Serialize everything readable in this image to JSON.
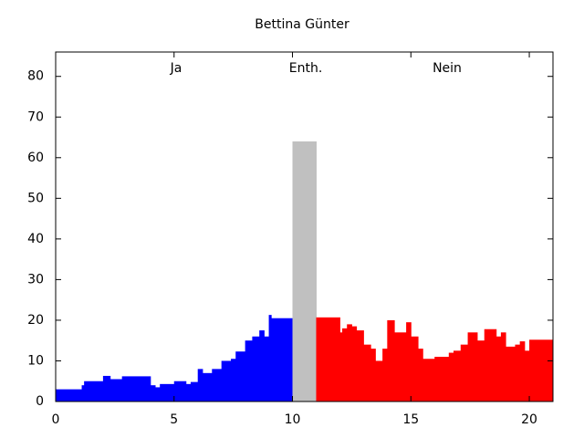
{
  "chart_data": {
    "type": "steps",
    "title": "Bettina Günter",
    "annotations": [
      "Ja",
      "Enth.",
      "Nein"
    ],
    "xlim": [
      0,
      21
    ],
    "xticks": [
      0,
      5,
      10,
      15,
      20
    ],
    "ylim": [
      0,
      86
    ],
    "yticks": [
      0,
      10,
      20,
      30,
      40,
      50,
      60,
      70,
      80
    ],
    "series": [
      {
        "color": "#0000ff",
        "bins": [
          0,
          1.1,
          1.2,
          2,
          2.3,
          2.8,
          4,
          4.2,
          4.4,
          5,
          5.5,
          5.7,
          6,
          6.2,
          6.6,
          7,
          7.4,
          7.6,
          8,
          8.3,
          8.6,
          8.8,
          9,
          9.1,
          10
        ],
        "values": [
          3,
          4,
          5,
          6.3,
          5.5,
          6.2,
          4,
          3.5,
          4.3,
          5,
          4.3,
          4.8,
          8,
          7,
          8,
          10,
          10.5,
          12.3,
          15,
          16,
          17.5,
          16,
          21.3,
          20.5
        ]
      },
      {
        "color": "#c0c0c0",
        "bins": [
          10,
          11
        ],
        "values": [
          64
        ]
      },
      {
        "color": "#ff0000",
        "bins": [
          11,
          12,
          12.1,
          12.3,
          12.5,
          12.7,
          13,
          13.3,
          13.5,
          13.8,
          14,
          14.3,
          14.8,
          15,
          15.3,
          15.5,
          16,
          16.6,
          16.8,
          17.1,
          17.4,
          17.8,
          18.1,
          18.6,
          18.8,
          19,
          19.4,
          19.6,
          19.8,
          20,
          21
        ],
        "values": [
          20.7,
          17,
          18,
          19,
          18.5,
          17.5,
          14,
          13,
          10,
          13,
          20,
          17,
          19.5,
          16,
          13,
          10.5,
          11,
          12,
          12.5,
          14,
          17,
          15,
          17.8,
          16,
          17,
          13.5,
          14,
          14.8,
          12.5,
          15.2
        ]
      }
    ]
  }
}
